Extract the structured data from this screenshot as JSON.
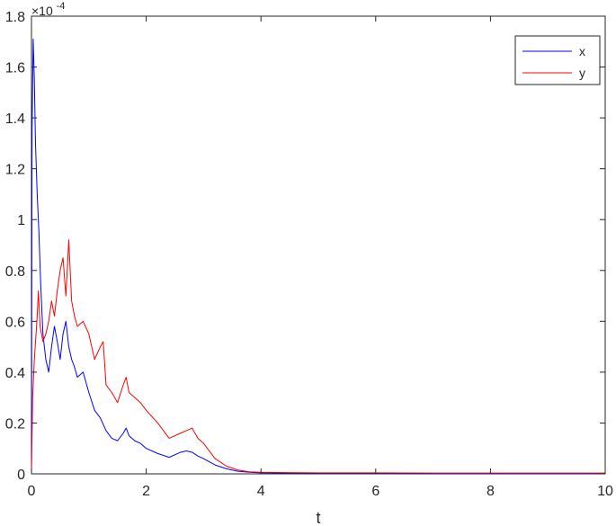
{
  "chart_data": {
    "type": "line",
    "title": "",
    "xlabel": "t",
    "ylabel": "",
    "y_exponent_label": "×10",
    "y_exponent_value": "-4",
    "xlim": [
      0,
      10
    ],
    "ylim": [
      0,
      1.8
    ],
    "x_ticks": [
      "0",
      "2",
      "4",
      "6",
      "8",
      "10"
    ],
    "y_ticks": [
      "0",
      "0.2",
      "0.4",
      "0.6",
      "0.8",
      "1",
      "1.2",
      "1.4",
      "1.6",
      "1.8"
    ],
    "grid": false,
    "legend_position": "top-right",
    "series": [
      {
        "name": "x",
        "color": "#0000ff",
        "x": [
          0,
          0.01,
          0.03,
          0.05,
          0.07,
          0.1,
          0.13,
          0.16,
          0.2,
          0.25,
          0.3,
          0.35,
          0.4,
          0.45,
          0.5,
          0.55,
          0.6,
          0.65,
          0.7,
          0.75,
          0.8,
          0.9,
          1.0,
          1.1,
          1.2,
          1.3,
          1.4,
          1.5,
          1.6,
          1.65,
          1.7,
          1.8,
          1.9,
          2.0,
          2.2,
          2.4,
          2.6,
          2.7,
          2.8,
          2.9,
          3.0,
          3.2,
          3.4,
          3.6,
          3.8,
          4.0,
          4.5,
          5.0,
          6.0,
          7.0,
          8.0,
          9.0,
          10.0
        ],
        "y": [
          0,
          1.35,
          1.71,
          1.55,
          1.3,
          1.1,
          0.95,
          0.75,
          0.55,
          0.45,
          0.4,
          0.5,
          0.58,
          0.52,
          0.45,
          0.55,
          0.6,
          0.5,
          0.45,
          0.42,
          0.38,
          0.4,
          0.32,
          0.25,
          0.22,
          0.17,
          0.14,
          0.13,
          0.16,
          0.18,
          0.15,
          0.13,
          0.12,
          0.1,
          0.08,
          0.065,
          0.085,
          0.09,
          0.085,
          0.07,
          0.06,
          0.035,
          0.02,
          0.01,
          0.006,
          0.004,
          0.003,
          0.002,
          0.002,
          0.001,
          0.001,
          0.001,
          0.001
        ]
      },
      {
        "name": "y",
        "color": "#ff0000",
        "x": [
          0,
          0.02,
          0.05,
          0.08,
          0.1,
          0.12,
          0.15,
          0.2,
          0.25,
          0.3,
          0.35,
          0.4,
          0.45,
          0.5,
          0.55,
          0.6,
          0.65,
          0.7,
          0.75,
          0.8,
          0.9,
          1.0,
          1.1,
          1.2,
          1.25,
          1.3,
          1.4,
          1.5,
          1.6,
          1.65,
          1.7,
          1.8,
          1.9,
          2.0,
          2.2,
          2.4,
          2.6,
          2.7,
          2.8,
          2.9,
          3.0,
          3.2,
          3.4,
          3.6,
          3.8,
          4.0,
          4.5,
          5.0,
          6.0,
          7.0,
          8.0,
          9.0,
          10.0
        ],
        "y": [
          0,
          0.3,
          0.45,
          0.55,
          0.62,
          0.72,
          0.58,
          0.52,
          0.55,
          0.6,
          0.68,
          0.62,
          0.72,
          0.8,
          0.85,
          0.7,
          0.92,
          0.68,
          0.62,
          0.58,
          0.6,
          0.55,
          0.45,
          0.5,
          0.52,
          0.35,
          0.32,
          0.28,
          0.35,
          0.38,
          0.32,
          0.3,
          0.28,
          0.25,
          0.2,
          0.14,
          0.16,
          0.17,
          0.18,
          0.14,
          0.12,
          0.06,
          0.03,
          0.015,
          0.008,
          0.006,
          0.005,
          0.004,
          0.004,
          0.003,
          0.003,
          0.003,
          0.003
        ]
      }
    ]
  }
}
